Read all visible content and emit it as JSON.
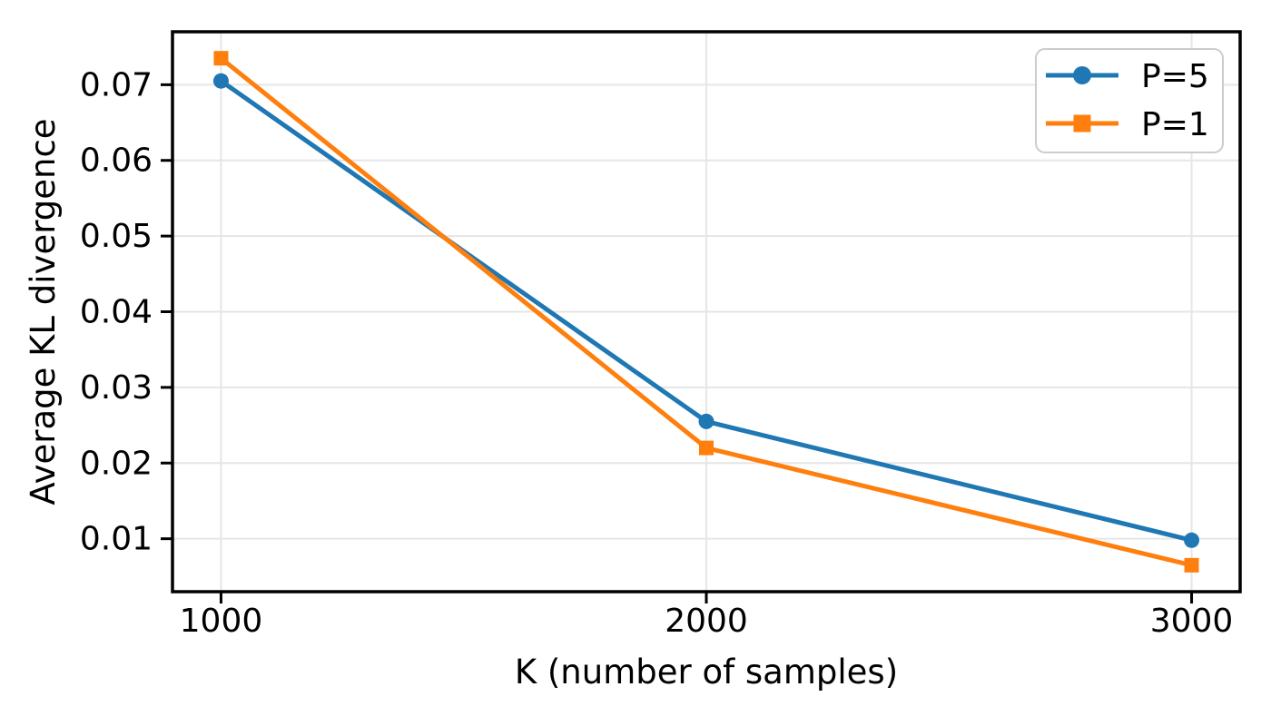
{
  "figure": {
    "background": "#ffffff"
  },
  "chart_data": {
    "type": "line",
    "title": "",
    "xlabel": "K (number of samples)",
    "ylabel": "Average KL divergence",
    "x": [
      1000,
      2000,
      3000
    ],
    "series": [
      {
        "name": "P=5",
        "values": [
          0.0705,
          0.0255,
          0.0098
        ],
        "color": "#1f77b4",
        "marker": "circle"
      },
      {
        "name": "P=1",
        "values": [
          0.0735,
          0.022,
          0.0065
        ],
        "color": "#ff7f0e",
        "marker": "square"
      }
    ],
    "xticks": [
      1000,
      2000,
      3000
    ],
    "xtick_labels": [
      "1000",
      "2000",
      "3000"
    ],
    "yticks": [
      0.01,
      0.02,
      0.03,
      0.04,
      0.05,
      0.06,
      0.07
    ],
    "ytick_labels": [
      "0.01",
      "0.02",
      "0.03",
      "0.04",
      "0.05",
      "0.06",
      "0.07"
    ],
    "xlim": [
      900,
      3100
    ],
    "ylim": [
      0.003,
      0.077
    ],
    "grid": true,
    "legend_position": "upper right",
    "legend_entries": [
      "P=5",
      "P=1"
    ]
  },
  "style": {
    "grid_color": "#e6e6e6",
    "spine_color": "#000000",
    "tick_color": "#000000",
    "text_color": "#000000",
    "legend_border_color": "#cccccc",
    "legend_bg_color": "#ffffff"
  }
}
